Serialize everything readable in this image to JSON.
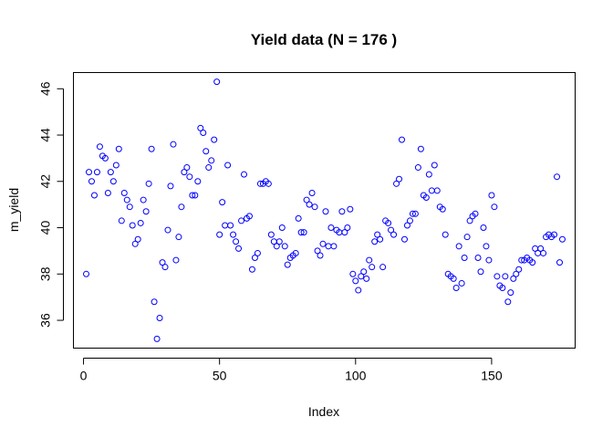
{
  "chart_data": {
    "type": "scatter",
    "title": "Yield data (N = 176 )",
    "xlabel": "Index",
    "ylabel": "m_yield",
    "xlim": [
      -3.7,
      180.7
    ],
    "ylim": [
      34.8,
      46.7
    ],
    "xticks": [
      0,
      50,
      100,
      150
    ],
    "yticks": [
      36,
      38,
      40,
      42,
      44,
      46
    ],
    "grid": false,
    "legend": "none",
    "marker_color": "#0000ff",
    "x": [
      1,
      2,
      3,
      4,
      5,
      6,
      7,
      8,
      9,
      10,
      11,
      12,
      13,
      14,
      15,
      16,
      17,
      18,
      19,
      20,
      21,
      22,
      23,
      24,
      25,
      26,
      27,
      28,
      29,
      30,
      31,
      32,
      33,
      34,
      35,
      36,
      37,
      38,
      39,
      40,
      41,
      42,
      43,
      44,
      45,
      46,
      47,
      48,
      49,
      50,
      51,
      52,
      53,
      54,
      55,
      56,
      57,
      58,
      59,
      60,
      61,
      62,
      63,
      64,
      65,
      66,
      67,
      68,
      69,
      70,
      71,
      72,
      73,
      74,
      75,
      76,
      77,
      78,
      79,
      80,
      81,
      82,
      83,
      84,
      85,
      86,
      87,
      88,
      89,
      90,
      91,
      92,
      93,
      94,
      95,
      96,
      97,
      98,
      99,
      100,
      101,
      102,
      103,
      104,
      105,
      106,
      107,
      108,
      109,
      110,
      111,
      112,
      113,
      114,
      115,
      116,
      117,
      118,
      119,
      120,
      121,
      122,
      123,
      124,
      125,
      126,
      127,
      128,
      129,
      130,
      131,
      132,
      133,
      134,
      135,
      136,
      137,
      138,
      139,
      140,
      141,
      142,
      143,
      144,
      145,
      146,
      147,
      148,
      149,
      150,
      151,
      152,
      153,
      154,
      155,
      156,
      157,
      158,
      159,
      160,
      161,
      162,
      163,
      164,
      165,
      166,
      167,
      168,
      169,
      170,
      171,
      172,
      173,
      174,
      175,
      176
    ],
    "y": [
      38.0,
      42.4,
      42.0,
      41.4,
      42.4,
      43.5,
      43.1,
      43.0,
      41.5,
      42.4,
      42.0,
      42.7,
      43.4,
      40.3,
      41.5,
      41.2,
      40.9,
      40.1,
      39.3,
      39.5,
      40.2,
      41.2,
      40.7,
      41.9,
      43.4,
      36.8,
      35.2,
      36.1,
      38.5,
      38.3,
      39.9,
      41.8,
      43.6,
      38.6,
      39.6,
      40.9,
      42.4,
      42.6,
      42.2,
      41.4,
      41.4,
      42.0,
      44.3,
      44.1,
      43.3,
      42.6,
      42.9,
      43.8,
      46.3,
      39.7,
      41.1,
      40.1,
      42.7,
      40.1,
      39.7,
      39.4,
      39.1,
      40.3,
      42.3,
      40.4,
      40.5,
      38.2,
      38.7,
      38.9,
      41.9,
      41.9,
      42.0,
      41.9,
      39.7,
      39.4,
      39.2,
      39.4,
      40.0,
      39.2,
      38.4,
      38.7,
      38.8,
      38.9,
      40.4,
      39.8,
      39.8,
      41.2,
      41.0,
      41.5,
      40.9,
      39.0,
      38.8,
      39.3,
      40.7,
      39.2,
      40.0,
      39.2,
      39.9,
      39.8,
      40.7,
      39.8,
      40.0,
      40.8,
      38.0,
      37.7,
      37.3,
      37.9,
      38.1,
      37.8,
      38.6,
      38.3,
      39.4,
      39.7,
      39.5,
      38.3,
      40.3,
      40.2,
      39.9,
      39.7,
      41.9,
      42.1,
      43.8,
      39.5,
      40.1,
      40.3,
      40.6,
      40.6,
      42.6,
      43.4,
      41.4,
      41.3,
      42.3,
      41.6,
      42.7,
      41.6,
      40.9,
      40.8,
      39.7,
      38.0,
      37.9,
      37.8,
      37.4,
      39.2,
      37.6,
      38.7,
      39.6,
      40.3,
      40.5,
      40.6,
      38.7,
      38.1,
      40.0,
      39.2,
      38.6,
      41.4,
      40.9,
      37.9,
      37.5,
      37.4,
      37.9,
      36.8,
      37.2,
      37.8,
      38.0,
      38.2,
      38.6,
      38.6,
      38.7,
      38.6,
      38.5,
      39.1,
      38.9,
      39.1,
      38.9,
      39.6,
      39.7,
      39.6,
      39.7,
      42.2,
      38.5,
      39.5
    ]
  }
}
